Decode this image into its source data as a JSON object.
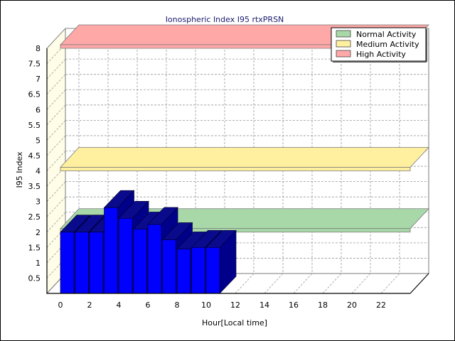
{
  "colors": {
    "background": "#ffffff",
    "wall": "#fffde8",
    "grid": "#9a9a9a",
    "bar_front": "#0000ff",
    "bar_top": "#0a0a8c",
    "bar_side": "#00008b",
    "normal_band": "#a8d8a8",
    "medium_band": "#fff0a0",
    "high_band": "#ffa8a8"
  },
  "chart_data": {
    "type": "bar",
    "title": "Ionospheric Index I95 rtxPRSN",
    "xlabel": "Hour[Local time]",
    "ylabel": "I95 Index",
    "xlim": [
      0,
      24
    ],
    "ylim": [
      0,
      8
    ],
    "x_ticks": [
      "0",
      "2",
      "4",
      "6",
      "8",
      "10",
      "12",
      "14",
      "16",
      "18",
      "20",
      "22"
    ],
    "y_ticks": [
      "0.5",
      "1",
      "1.5",
      "2",
      "2.5",
      "3",
      "3.5",
      "4",
      "4.5",
      "5",
      "5.5",
      "6",
      "6.5",
      "7",
      "7.5",
      "8"
    ],
    "grid": true,
    "legend_position": "top-right",
    "categories": [
      "0",
      "1",
      "2",
      "3",
      "4",
      "5",
      "6",
      "7",
      "8",
      "9",
      "10"
    ],
    "values": [
      2.0,
      2.0,
      2.0,
      2.8,
      2.45,
      2.1,
      2.25,
      1.75,
      1.45,
      1.5,
      1.5
    ],
    "bands": [
      {
        "name": "Normal Activity",
        "value": 2.0,
        "color": "#a8d8a8"
      },
      {
        "name": "Medium Activity",
        "value": 4.0,
        "color": "#fff0a0"
      },
      {
        "name": "High Activity",
        "value": 8.0,
        "color": "#ffa8a8"
      }
    ]
  }
}
